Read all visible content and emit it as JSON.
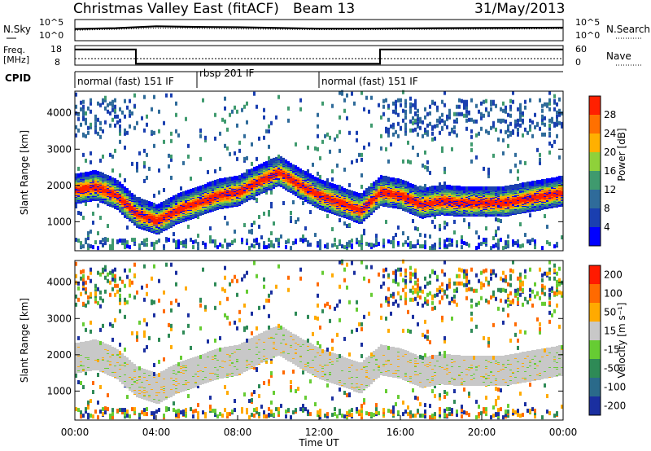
{
  "header": {
    "station": "Christmas Valley East (fitACF)",
    "beam": "Beam 13",
    "date": "31/May/2013"
  },
  "noise_panel": {
    "left_label": "N.Sky",
    "right_label": "N.Search",
    "left_ticks": [
      "10^5",
      "10^0"
    ],
    "right_ticks": [
      "10^5",
      "10^0"
    ]
  },
  "freq_panel": {
    "left_label_line1": "Freq.",
    "left_label_line2": "[MHz]",
    "left_ticks": [
      "18",
      "8"
    ],
    "right_label": "Nave",
    "right_ticks": [
      "60",
      "0"
    ]
  },
  "cpid_panel": {
    "label": "CPID",
    "modes": [
      {
        "name": "normal (fast) 151 IF",
        "start_h": 0,
        "end_h": 6
      },
      {
        "name": "rbsp 201 IF",
        "start_h": 6,
        "end_h": 12
      },
      {
        "name": "normal (fast) 151 IF",
        "start_h": 12,
        "end_h": 24
      }
    ]
  },
  "time_axis": {
    "label": "Time UT",
    "ticks": [
      "00:00",
      "04:00",
      "08:00",
      "12:00",
      "16:00",
      "20:00",
      "00:00"
    ]
  },
  "range_axis": {
    "label": "Slant Range [km]",
    "ticks": [
      "1000",
      "2000",
      "3000",
      "4000"
    ]
  },
  "power_colorbar": {
    "label": "Power [dB]",
    "ticks": [
      "4",
      "8",
      "12",
      "16",
      "20",
      "24",
      "28"
    ],
    "colors": [
      "#0000ff",
      "#1a3fb0",
      "#2f6b9a",
      "#3f9a6e",
      "#8fd13a",
      "#ffb000",
      "#ff7000",
      "#ff2000"
    ]
  },
  "velocity_colorbar": {
    "label": "Velocity [m s⁻¹]",
    "ticks": [
      "200",
      "100",
      "50",
      "15",
      "-15",
      "-50",
      "-100",
      "-200"
    ],
    "colors": [
      "#1a2fa0",
      "#2a6a8a",
      "#2e8a56",
      "#66cc33",
      "#c8c8c8",
      "#ffaa00",
      "#ff6a00",
      "#ff1a00"
    ]
  },
  "chart_data": [
    {
      "type": "line",
      "title": "N.Sky / N.Search noise",
      "x": [
        0,
        2,
        4,
        6,
        8,
        10,
        12,
        14,
        16,
        18,
        20,
        22,
        24
      ],
      "series": [
        {
          "name": "N.Sky",
          "values": [
            600,
            900,
            2500,
            1800,
            1500,
            1000,
            700,
            700,
            800,
            900,
            1000,
            1100,
            1200
          ]
        },
        {
          "name": "N.Search",
          "values": [
            300,
            500,
            900,
            800,
            600,
            500,
            400,
            400,
            450,
            500,
            550,
            600,
            650
          ]
        }
      ],
      "ylim": [
        1,
        100000
      ]
    },
    {
      "type": "line",
      "title": "Freq. [MHz] / Nave",
      "x": [
        0,
        3,
        3,
        15,
        15,
        24
      ],
      "series": [
        {
          "name": "Freq.",
          "values": [
            16,
            16,
            8.7,
            8.7,
            16,
            16
          ]
        },
        {
          "name": "Nave",
          "values": [
            20,
            20,
            20,
            20,
            20,
            20
          ]
        }
      ],
      "ylim": [
        8,
        18
      ]
    },
    {
      "type": "heatmap",
      "title": "Power [dB]",
      "xlabel": "Time UT",
      "ylabel": "Slant Range [km]",
      "xlim": [
        0,
        24
      ],
      "ylim": [
        200,
        4600
      ],
      "main_band_range_km": [
        [
          0,
          1850
        ],
        [
          1,
          1950
        ],
        [
          2,
          1700
        ],
        [
          3,
          1200
        ],
        [
          4,
          1000
        ],
        [
          5,
          1300
        ],
        [
          6,
          1500
        ],
        [
          7,
          1700
        ],
        [
          8,
          1800
        ],
        [
          9,
          2100
        ],
        [
          10,
          2350
        ],
        [
          11,
          2000
        ],
        [
          12,
          1700
        ],
        [
          13,
          1500
        ],
        [
          14,
          1300
        ],
        [
          15,
          1800
        ],
        [
          16,
          1700
        ],
        [
          17,
          1450
        ],
        [
          18,
          1550
        ],
        [
          19,
          1500
        ],
        [
          20,
          1500
        ],
        [
          21,
          1500
        ],
        [
          22,
          1600
        ],
        [
          23,
          1700
        ],
        [
          24,
          1800
        ]
      ],
      "peak_power_db": 28
    },
    {
      "type": "heatmap",
      "title": "Velocity [m s-1]",
      "xlabel": "Time UT",
      "ylabel": "Slant Range [km]",
      "xlim": [
        0,
        24
      ],
      "ylim": [
        200,
        4600
      ],
      "dominant_velocity_ms": [
        -15,
        15
      ]
    }
  ]
}
